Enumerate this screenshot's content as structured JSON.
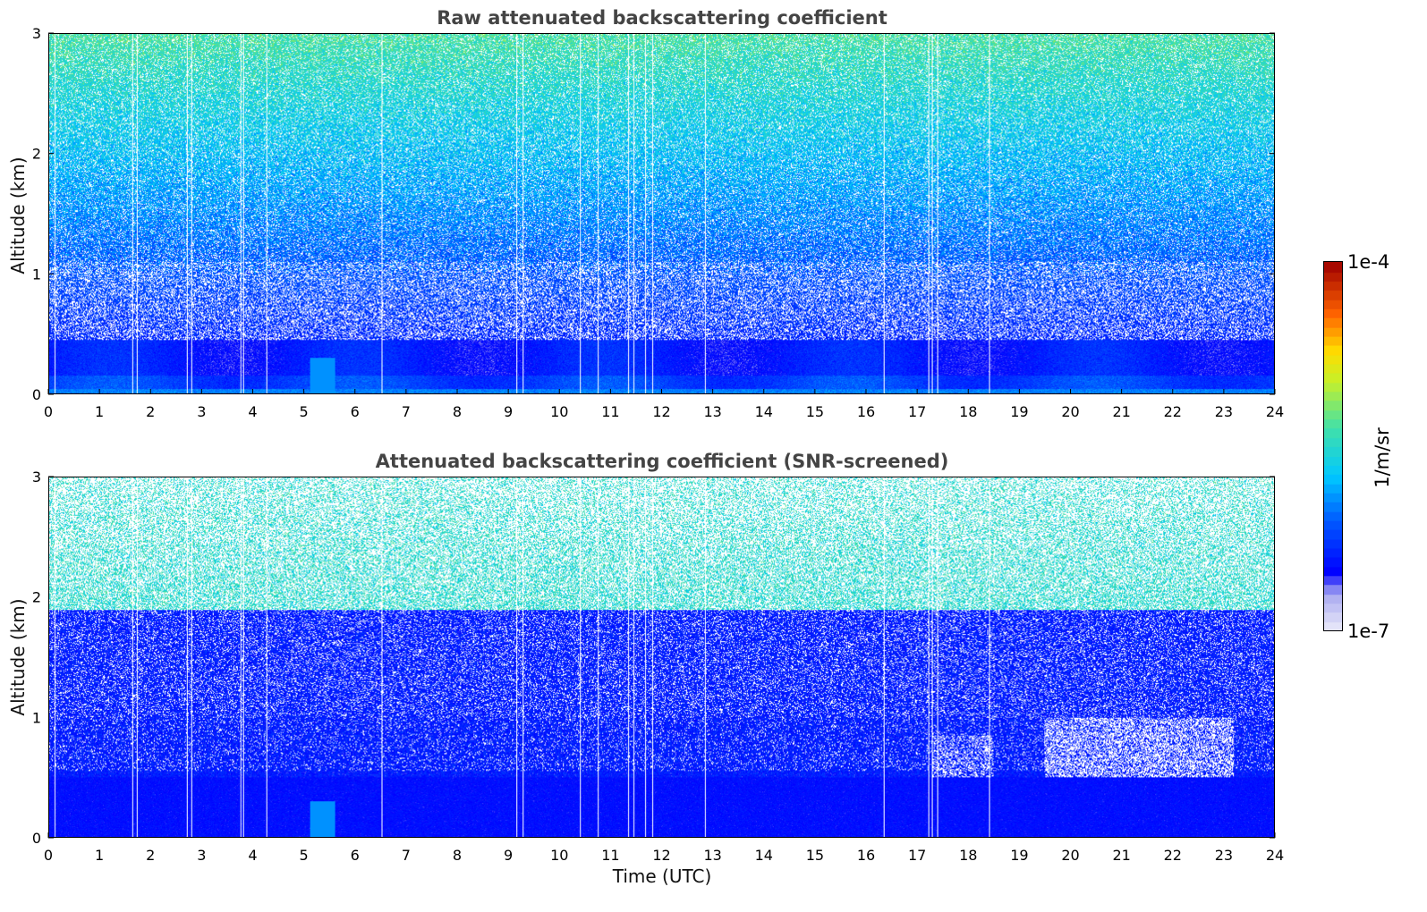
{
  "chart_data": [
    {
      "type": "heatmap",
      "title": "Raw attenuated backscattering coefficient",
      "xlabel": "",
      "ylabel": "Altitude (km)",
      "xlim": [
        0,
        24
      ],
      "ylim": [
        0,
        3
      ],
      "x_ticks": [
        "0",
        "1",
        "2",
        "3",
        "4",
        "5",
        "6",
        "7",
        "8",
        "9",
        "10",
        "11",
        "12",
        "13",
        "14",
        "15",
        "16",
        "17",
        "18",
        "19",
        "20",
        "21",
        "22",
        "23",
        "24"
      ],
      "y_ticks": [
        "0",
        "1",
        "2",
        "3"
      ],
      "screened": false
    },
    {
      "type": "heatmap",
      "title": "Attenuated backscattering coefficient (SNR-screened)",
      "xlabel": "Time (UTC)",
      "ylabel": "Altitude (km)",
      "xlim": [
        0,
        24
      ],
      "ylim": [
        0,
        3
      ],
      "x_ticks": [
        "0",
        "1",
        "2",
        "3",
        "4",
        "5",
        "6",
        "7",
        "8",
        "9",
        "10",
        "11",
        "12",
        "13",
        "14",
        "15",
        "16",
        "17",
        "18",
        "19",
        "20",
        "21",
        "22",
        "23",
        "24"
      ],
      "y_ticks": [
        "0",
        "1",
        "2",
        "3"
      ],
      "screened": true
    }
  ],
  "colorbar": {
    "label": "1/m/sr",
    "max_label": "1e-4",
    "min_label": "1e-7",
    "scale": "log",
    "range": [
      1e-07,
      0.0001
    ],
    "colormap_stops": [
      "#e8e8f8",
      "#0000ff",
      "#00c8ff",
      "#40e0a0",
      "#e8f000",
      "#ff6000",
      "#a00000"
    ]
  },
  "data_gaps_hours": [
    0.1,
    1.62,
    1.72,
    2.7,
    2.78,
    3.75,
    3.8,
    4.25,
    6.52,
    9.15,
    9.28,
    10.4,
    10.75,
    11.35,
    11.45,
    11.68,
    11.82,
    12.85,
    16.35,
    17.22,
    17.3,
    17.4,
    18.42
  ]
}
